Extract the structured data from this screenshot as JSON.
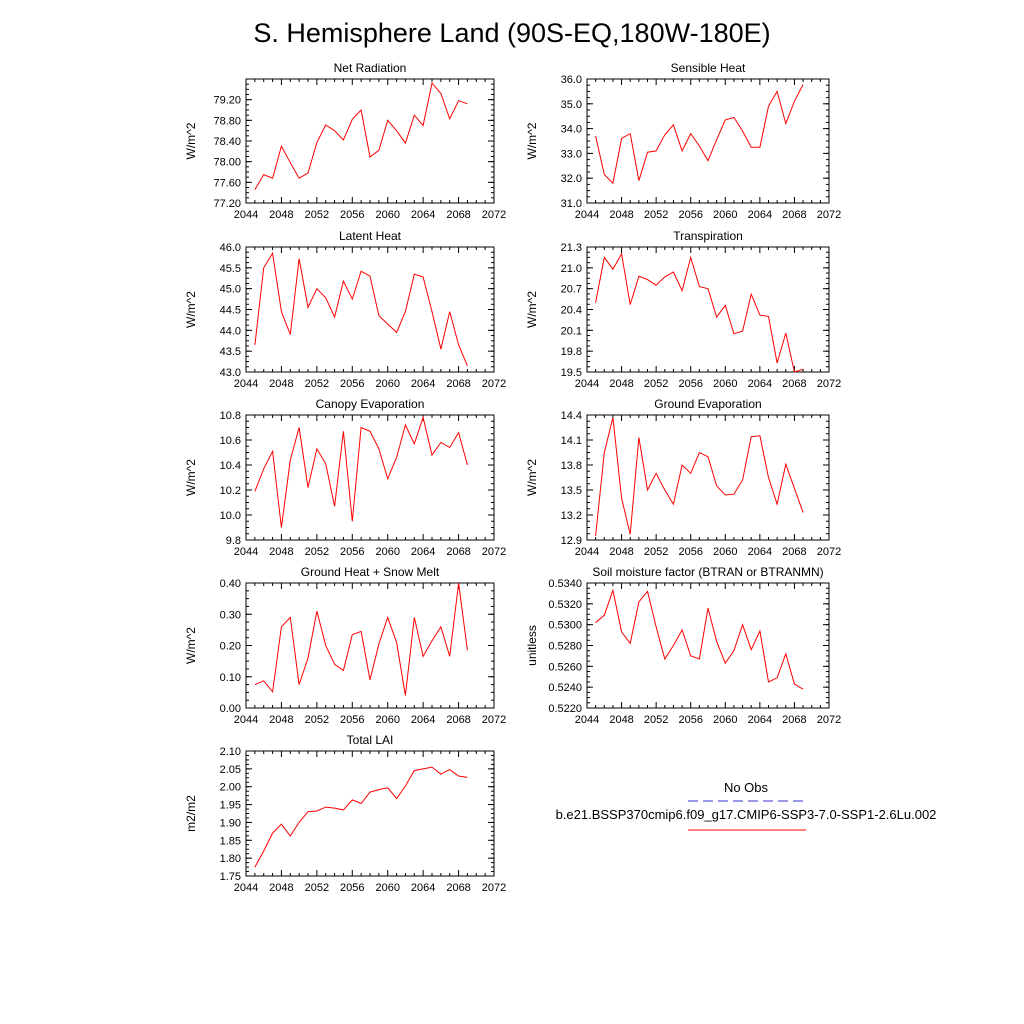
{
  "figure": {
    "title": "S. Hemisphere Land (90S-EQ,180W-180E)"
  },
  "legend": {
    "items": [
      {
        "label": "No Obs",
        "color": "#3333cc",
        "style": "dashed"
      },
      {
        "label": "b.e21.BSSP370cmip6.f09_g17.CMIP6-SSP3-7.0-SSP1-2.6Lu.002",
        "color": "#ff0000",
        "style": "solid"
      }
    ]
  },
  "chart_data": [
    {
      "type": "line",
      "title": "Net Radiation",
      "ylabel": "W/m^2",
      "xlim": [
        2044,
        2072
      ],
      "ylim": [
        77.2,
        79.6
      ],
      "xticks": [
        "2044",
        "2048",
        "2052",
        "2056",
        "2060",
        "2064",
        "2068",
        "2072"
      ],
      "yticks": [
        "77.20",
        "77.60",
        "78.00",
        "78.40",
        "78.80",
        "79.20"
      ],
      "series": [
        {
          "color": "#ff0000",
          "x": [
            2045,
            2046,
            2047,
            2048,
            2049,
            2050,
            2051,
            2052,
            2053,
            2054,
            2055,
            2056,
            2057,
            2058,
            2059,
            2060,
            2061,
            2062,
            2063,
            2064,
            2065,
            2066,
            2067,
            2068,
            2069
          ],
          "y": [
            77.46,
            77.75,
            77.68,
            78.3,
            77.98,
            77.68,
            77.78,
            78.37,
            78.71,
            78.6,
            78.42,
            78.82,
            79.0,
            78.09,
            78.22,
            78.8,
            78.6,
            78.36,
            78.9,
            78.7,
            79.52,
            79.32,
            78.83,
            79.18,
            79.12
          ]
        }
      ]
    },
    {
      "type": "line",
      "title": "Sensible Heat",
      "ylabel": "W/m^2",
      "xlim": [
        2044,
        2072
      ],
      "ylim": [
        31.0,
        36.0
      ],
      "xticks": [
        "2044",
        "2048",
        "2052",
        "2056",
        "2060",
        "2064",
        "2068",
        "2072"
      ],
      "yticks": [
        "31.0",
        "32.0",
        "33.0",
        "34.0",
        "35.0",
        "36.0"
      ],
      "extra_yticks": [
        "32.0",
        "33.0",
        "34.0",
        "35.0"
      ],
      "series": [
        {
          "color": "#ff0000",
          "x": [
            2045,
            2046,
            2047,
            2048,
            2049,
            2050,
            2051,
            2052,
            2053,
            2054,
            2055,
            2056,
            2057,
            2058,
            2059,
            2060,
            2061,
            2062,
            2063,
            2064,
            2065,
            2066,
            2067,
            2068,
            2069
          ],
          "y": [
            33.7,
            32.15,
            31.8,
            33.6,
            33.8,
            31.9,
            33.05,
            33.1,
            33.75,
            34.15,
            33.1,
            33.8,
            33.3,
            32.7,
            33.55,
            34.35,
            34.45,
            33.9,
            33.25,
            33.25,
            34.9,
            35.5,
            34.2,
            35.1,
            35.78
          ]
        }
      ]
    },
    {
      "type": "line",
      "title": "Latent Heat",
      "ylabel": "W/m^2",
      "xlim": [
        2044,
        2072
      ],
      "ylim": [
        43.0,
        46.0
      ],
      "xticks": [
        "2044",
        "2048",
        "2052",
        "2056",
        "2060",
        "2064",
        "2068",
        "2072"
      ],
      "yticks": [
        "43.0",
        "43.5",
        "44.0",
        "44.5",
        "45.0",
        "45.5",
        "46.0"
      ],
      "series": [
        {
          "color": "#ff0000",
          "x": [
            2045,
            2046,
            2047,
            2048,
            2049,
            2050,
            2051,
            2052,
            2053,
            2054,
            2055,
            2056,
            2057,
            2058,
            2059,
            2060,
            2061,
            2062,
            2063,
            2064,
            2065,
            2066,
            2067,
            2068,
            2069
          ],
          "y": [
            43.65,
            45.5,
            45.85,
            44.45,
            43.9,
            45.72,
            44.55,
            45.0,
            44.78,
            44.32,
            45.18,
            44.75,
            45.42,
            45.3,
            44.35,
            44.15,
            43.95,
            44.45,
            45.35,
            45.28,
            44.45,
            43.55,
            44.45,
            43.65,
            43.15
          ]
        }
      ]
    },
    {
      "type": "line",
      "title": "Transpiration",
      "ylabel": "W/m^2",
      "xlim": [
        2044,
        2072
      ],
      "ylim": [
        19.5,
        21.3
      ],
      "xticks": [
        "2044",
        "2048",
        "2052",
        "2056",
        "2060",
        "2064",
        "2068",
        "2072"
      ],
      "yticks": [
        "19.5",
        "19.8",
        "20.1",
        "20.4",
        "20.7",
        "21.0",
        "21.3"
      ],
      "series": [
        {
          "color": "#ff0000",
          "x": [
            2045,
            2046,
            2047,
            2048,
            2049,
            2050,
            2051,
            2052,
            2053,
            2054,
            2055,
            2056,
            2057,
            2058,
            2059,
            2060,
            2061,
            2062,
            2063,
            2064,
            2065,
            2066,
            2067,
            2068,
            2069
          ],
          "y": [
            20.5,
            21.15,
            20.98,
            21.2,
            20.47,
            20.88,
            20.83,
            20.75,
            20.87,
            20.94,
            20.67,
            21.15,
            20.73,
            20.7,
            20.29,
            20.46,
            20.05,
            20.09,
            20.62,
            20.32,
            20.3,
            19.63,
            20.06,
            19.5,
            19.54
          ]
        }
      ]
    },
    {
      "type": "line",
      "title": "Canopy Evaporation",
      "ylabel": "W/m^2",
      "xlim": [
        2044,
        2072
      ],
      "ylim": [
        9.8,
        10.8
      ],
      "xticks": [
        "2044",
        "2048",
        "2052",
        "2056",
        "2060",
        "2064",
        "2068",
        "2072"
      ],
      "yticks": [
        "9.8",
        "10.0",
        "10.2",
        "10.4",
        "10.6",
        "10.8"
      ],
      "series": [
        {
          "color": "#ff0000",
          "x": [
            2045,
            2046,
            2047,
            2048,
            2049,
            2050,
            2051,
            2052,
            2053,
            2054,
            2055,
            2056,
            2057,
            2058,
            2059,
            2060,
            2061,
            2062,
            2063,
            2064,
            2065,
            2066,
            2067,
            2068,
            2069
          ],
          "y": [
            10.19,
            10.37,
            10.51,
            9.9,
            10.44,
            10.7,
            10.22,
            10.53,
            10.41,
            10.07,
            10.67,
            9.95,
            10.7,
            10.67,
            10.53,
            10.29,
            10.46,
            10.72,
            10.57,
            10.78,
            10.48,
            10.58,
            10.54,
            10.66,
            10.4
          ]
        }
      ]
    },
    {
      "type": "line",
      "title": "Ground Evaporation",
      "ylabel": "W/m^2",
      "xlim": [
        2044,
        2072
      ],
      "ylim": [
        12.9,
        14.4
      ],
      "xticks": [
        "2044",
        "2048",
        "2052",
        "2056",
        "2060",
        "2064",
        "2068",
        "2072"
      ],
      "yticks": [
        "12.9",
        "13.2",
        "13.5",
        "13.8",
        "14.1",
        "14.4"
      ],
      "series": [
        {
          "color": "#ff0000",
          "x": [
            2045,
            2046,
            2047,
            2048,
            2049,
            2050,
            2051,
            2052,
            2053,
            2054,
            2055,
            2056,
            2057,
            2058,
            2059,
            2060,
            2061,
            2062,
            2063,
            2064,
            2065,
            2066,
            2067,
            2068,
            2069
          ],
          "y": [
            12.95,
            13.95,
            14.37,
            13.4,
            12.97,
            14.13,
            13.5,
            13.7,
            13.5,
            13.33,
            13.8,
            13.7,
            13.95,
            13.9,
            13.55,
            13.44,
            13.45,
            13.62,
            14.14,
            14.15,
            13.65,
            13.33,
            13.81,
            13.52,
            13.23
          ]
        }
      ]
    },
    {
      "type": "line",
      "title": "Ground Heat + Snow Melt",
      "ylabel": "W/m^2",
      "xlim": [
        2044,
        2072
      ],
      "ylim": [
        0.0,
        0.4
      ],
      "xticks": [
        "2044",
        "2048",
        "2052",
        "2056",
        "2060",
        "2064",
        "2068",
        "2072"
      ],
      "yticks": [
        "0.00",
        "0.10",
        "0.20",
        "0.30",
        "0.40"
      ],
      "series": [
        {
          "color": "#ff0000",
          "x": [
            2045,
            2046,
            2047,
            2048,
            2049,
            2050,
            2051,
            2052,
            2053,
            2054,
            2055,
            2056,
            2057,
            2058,
            2059,
            2060,
            2061,
            2062,
            2063,
            2064,
            2065,
            2066,
            2067,
            2068,
            2069
          ],
          "y": [
            0.075,
            0.087,
            0.052,
            0.26,
            0.29,
            0.075,
            0.16,
            0.31,
            0.2,
            0.14,
            0.12,
            0.235,
            0.245,
            0.09,
            0.205,
            0.29,
            0.21,
            0.04,
            0.29,
            0.165,
            0.215,
            0.26,
            0.165,
            0.4,
            0.185
          ]
        }
      ]
    },
    {
      "type": "line",
      "title": "Soil moisture factor (BTRAN or BTRANMN)",
      "ylabel": "unitless",
      "xlim": [
        2044,
        2072
      ],
      "ylim": [
        0.522,
        0.534
      ],
      "xticks": [
        "2044",
        "2048",
        "2052",
        "2056",
        "2060",
        "2064",
        "2068",
        "2072"
      ],
      "yticks": [
        "0.5220",
        "0.5240",
        "0.5260",
        "0.5280",
        "0.5300",
        "0.5320",
        "0.5340"
      ],
      "series": [
        {
          "color": "#ff0000",
          "x": [
            2045,
            2046,
            2047,
            2048,
            2049,
            2050,
            2051,
            2052,
            2053,
            2054,
            2055,
            2056,
            2057,
            2058,
            2059,
            2060,
            2061,
            2062,
            2063,
            2064,
            2065,
            2066,
            2067,
            2068,
            2069
          ],
          "y": [
            0.5302,
            0.5309,
            0.5333,
            0.5293,
            0.5282,
            0.5322,
            0.5332,
            0.5298,
            0.5267,
            0.528,
            0.5295,
            0.527,
            0.5267,
            0.5316,
            0.5284,
            0.5263,
            0.5275,
            0.53,
            0.5276,
            0.5294,
            0.5245,
            0.5249,
            0.5272,
            0.5243,
            0.5238
          ]
        }
      ]
    },
    {
      "type": "line",
      "title": "Total LAI",
      "ylabel": "m2/m2",
      "xlim": [
        2044,
        2072
      ],
      "ylim": [
        1.75,
        2.1
      ],
      "xticks": [
        "2044",
        "2048",
        "2052",
        "2056",
        "2060",
        "2064",
        "2068",
        "2072"
      ],
      "yticks": [
        "1.75",
        "1.80",
        "1.85",
        "1.90",
        "1.95",
        "2.00",
        "2.05",
        "2.10"
      ],
      "series": [
        {
          "color": "#ff0000",
          "x": [
            2045,
            2046,
            2047,
            2048,
            2049,
            2050,
            2051,
            2052,
            2053,
            2054,
            2055,
            2056,
            2057,
            2058,
            2059,
            2060,
            2061,
            2062,
            2063,
            2064,
            2065,
            2066,
            2067,
            2068,
            2069
          ],
          "y": [
            1.775,
            1.82,
            1.87,
            1.895,
            1.862,
            1.9,
            1.93,
            1.932,
            1.943,
            1.94,
            1.935,
            1.963,
            1.953,
            1.985,
            1.992,
            1.997,
            1.967,
            2.002,
            2.045,
            2.05,
            2.055,
            2.035,
            2.048,
            2.03,
            2.026
          ]
        }
      ]
    }
  ]
}
